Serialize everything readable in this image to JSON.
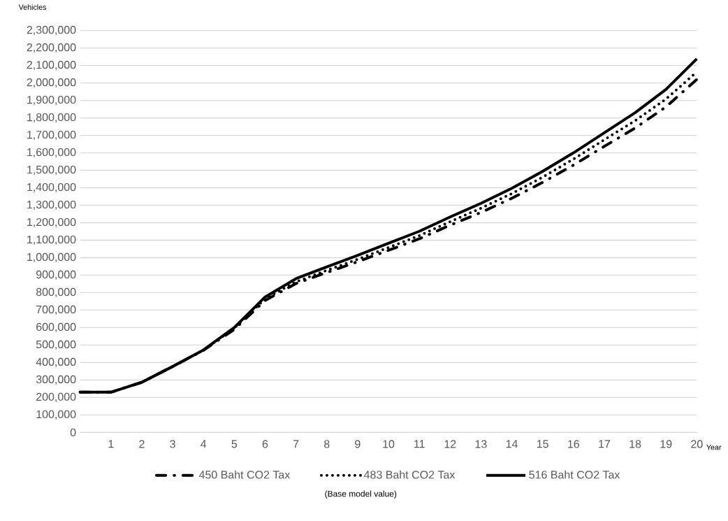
{
  "chart_data": {
    "type": "line",
    "ylabel": "Vehicles",
    "xlabel": "Year",
    "categories": [
      null,
      "1",
      "2",
      "3",
      "4",
      "5",
      "6",
      "7",
      "8",
      "9",
      "10",
      "11",
      "12",
      "13",
      "14",
      "15",
      "16",
      "17",
      "18",
      "19",
      "20"
    ],
    "series": [
      {
        "name": "450 Baht CO2 Tax",
        "color": "#000000",
        "line_style": "dashdot",
        "values": [
          230000,
          230000,
          287000,
          377000,
          470000,
          590000,
          755000,
          852000,
          915000,
          977000,
          1042000,
          1108000,
          1186000,
          1259000,
          1340000,
          1431000,
          1530000,
          1637000,
          1742000,
          1863000,
          2020000
        ]
      },
      {
        "name": "483 Baht CO2 Tax",
        "color": "#000000",
        "line_style": "dotted",
        "values": [
          230000,
          230000,
          287000,
          377000,
          471000,
          597000,
          765000,
          862000,
          927000,
          991000,
          1058000,
          1126000,
          1206000,
          1283000,
          1367000,
          1461000,
          1564000,
          1675000,
          1784000,
          1908000,
          2063000
        ]
      },
      {
        "name": "516 Baht CO2 Tax",
        "color": "#000000",
        "line_style": "solid",
        "values": [
          230000,
          230000,
          287000,
          377000,
          472000,
          600000,
          775000,
          880000,
          947000,
          1013000,
          1082000,
          1151000,
          1233000,
          1311000,
          1397000,
          1494000,
          1600000,
          1715000,
          1830000,
          1963000,
          2138000
        ]
      }
    ],
    "ylim": [
      0,
      2300000
    ],
    "yticks": [
      {
        "value": 0,
        "label": "0"
      },
      {
        "value": 100000,
        "label": "100,000"
      },
      {
        "value": 200000,
        "label": "200,000"
      },
      {
        "value": 300000,
        "label": "300,000"
      },
      {
        "value": 400000,
        "label": "400,000"
      },
      {
        "value": 500000,
        "label": "500,000"
      },
      {
        "value": 600000,
        "label": "600,000"
      },
      {
        "value": 700000,
        "label": "700,000"
      },
      {
        "value": 800000,
        "label": "800,000"
      },
      {
        "value": 900000,
        "label": "900,000"
      },
      {
        "value": 1000000,
        "label": "1,000,000"
      },
      {
        "value": 1100000,
        "label": "1,100,000"
      },
      {
        "value": 1200000,
        "label": "1,200,000"
      },
      {
        "value": 1300000,
        "label": "1,300,000"
      },
      {
        "value": 1400000,
        "label": "1,400,000"
      },
      {
        "value": 1500000,
        "label": "1,500,000"
      },
      {
        "value": 1600000,
        "label": "1,600,000"
      },
      {
        "value": 1700000,
        "label": "1,700,000"
      },
      {
        "value": 1800000,
        "label": "1,800,000"
      },
      {
        "value": 1900000,
        "label": "1,900,000"
      },
      {
        "value": 2000000,
        "label": "2,000,000"
      },
      {
        "value": 2100000,
        "label": "2,100,000"
      },
      {
        "value": 2200000,
        "label": "2,200,000"
      },
      {
        "value": 2300000,
        "label": "2,300,000"
      }
    ],
    "grid": "y",
    "legend": "bottom",
    "annotations": [
      "(Base model value)"
    ]
  }
}
